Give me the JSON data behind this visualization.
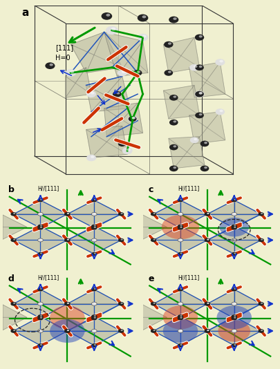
{
  "bg_color": "#f0f0d0",
  "panel_bg": "#f0f0d0",
  "title_a": "a",
  "title_b": "b",
  "title_c": "c",
  "title_d": "d",
  "title_e": "e",
  "label_111": "[111]",
  "label_H0": "H=0",
  "label_H111": "H//[111]",
  "green_color": "#009900",
  "blue_color": "#2255bb",
  "red_color": "#cc2200",
  "cube_color": "#333333",
  "tetra_fill": "#b8b8a0",
  "tetra_edge": "#707068",
  "arrow_blue": "#1133cc",
  "monopole_red": "#dd4422",
  "monopole_blue": "#2244bb",
  "white_sphere": "#e0e0e0",
  "black_sphere": "#222222",
  "red_cyl": "#cc3300"
}
